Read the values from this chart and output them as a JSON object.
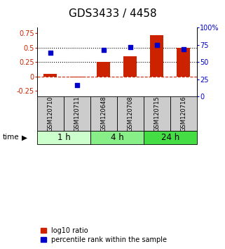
{
  "title": "GDS3433 / 4458",
  "samples": [
    "GSM120710",
    "GSM120711",
    "GSM120648",
    "GSM120708",
    "GSM120715",
    "GSM120716"
  ],
  "log10_ratio": [
    0.04,
    -0.02,
    0.25,
    0.35,
    0.72,
    0.5
  ],
  "percentile_rank_pct": [
    63,
    17,
    67,
    72,
    75,
    68
  ],
  "time_groups": [
    {
      "label": "1 h",
      "start": 0,
      "end": 2,
      "color": "#ccffcc"
    },
    {
      "label": "4 h",
      "start": 2,
      "end": 4,
      "color": "#88ee88"
    },
    {
      "label": "24 h",
      "start": 4,
      "end": 6,
      "color": "#44dd44"
    }
  ],
  "bar_color": "#cc2200",
  "dot_color": "#0000cc",
  "ylim_left": [
    -0.35,
    0.85
  ],
  "ylim_right": [
    0,
    100
  ],
  "yticks_left": [
    -0.25,
    0,
    0.25,
    0.5,
    0.75
  ],
  "ytick_labels_left": [
    "-0.25",
    "0",
    "0.25",
    "0.5",
    "0.75"
  ],
  "right_ticks": [
    0,
    25,
    50,
    75,
    100
  ],
  "ytick_labels_right": [
    "0",
    "25",
    "50",
    "75",
    "100%"
  ],
  "hlines": [
    0.0,
    0.25,
    0.5
  ],
  "hline_styles": [
    "dashed",
    "dotted",
    "dotted"
  ],
  "hline_colors": [
    "#cc2200",
    "#000000",
    "#000000"
  ],
  "sample_box_color": "#cccccc",
  "title_fontsize": 11,
  "tick_fontsize": 7,
  "legend_fontsize": 7,
  "sample_fontsize": 6
}
